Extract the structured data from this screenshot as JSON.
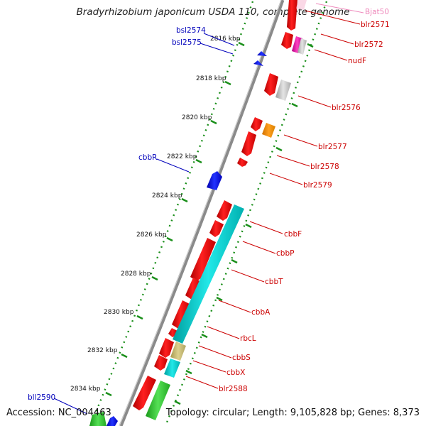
{
  "title": "Bradyrhizobium japonicum USDA 110, complete genome",
  "footer": {
    "accession": "Accession: NC_004463",
    "info": "Topology: circular; Length: 9,105,828 bp; Genes: 8,373"
  },
  "colors": {
    "backbone": "#8a8a8a",
    "tick": "#1a8f1a",
    "forward_label": "#cc0000",
    "reverse_label": "#0000bb",
    "rna_label": "#ee88bb"
  },
  "kbp_ticks": [
    "2816 kbp",
    "2818 kbp",
    "2820 kbp",
    "2822 kbp",
    "2824 kbp",
    "2826 kbp",
    "2828 kbp",
    "2830 kbp",
    "2832 kbp",
    "2834 kbp"
  ],
  "gene_labels": {
    "bjat50": "Bjat50",
    "blr2571": "blr2571",
    "bsl2574": "bsl2574",
    "bsl2575": "bsl2575",
    "blr2572": "blr2572",
    "nudF": "nudF",
    "blr2576": "blr2576",
    "blr2577": "blr2577",
    "cbbR": "cbbR",
    "blr2578": "blr2578",
    "blr2579": "blr2579",
    "cbbF": "cbbF",
    "cbbP": "cbbP",
    "cbbT": "cbbT",
    "cbbA": "cbbA",
    "rbcL": "rbcL",
    "cbbS": "cbbS",
    "cbbX": "cbbX",
    "blr2588": "blr2588",
    "bll2590": "bll2590"
  }
}
